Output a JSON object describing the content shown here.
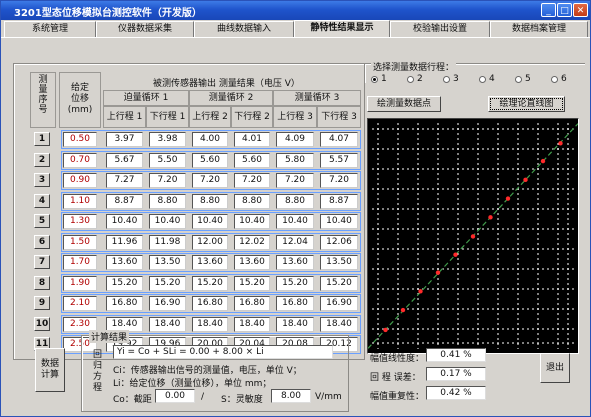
{
  "window": {
    "title": "3201型态位移模拟台测控软件（开发版）"
  },
  "tabs": [
    "系统管理",
    "仪器数据采集",
    "曲线数据输入",
    "静特性结果显示",
    "校验输出设置",
    "数据档案管理"
  ],
  "active_tab": 3,
  "table": {
    "group_title": "被测传感器输出 测量结果（电压 V）",
    "col_num": "测量序号",
    "col_disp": "给定位移",
    "col_unit": "(mm)",
    "cycles": [
      "迫量循环 1",
      "测量循环 2",
      "测量循环 3"
    ],
    "subcols": [
      "上行程 1",
      "下行程 1",
      "上行程 2",
      "下行程 2",
      "上行程 3",
      "下行程 3"
    ],
    "rows": [
      {
        "n": "1",
        "disp": "0.50",
        "v": [
          "3.97",
          "3.98",
          "4.00",
          "4.01",
          "4.09",
          "4.07"
        ]
      },
      {
        "n": "2",
        "disp": "0.70",
        "v": [
          "5.67",
          "5.50",
          "5.60",
          "5.60",
          "5.80",
          "5.57"
        ]
      },
      {
        "n": "3",
        "disp": "0.90",
        "v": [
          "7.27",
          "7.20",
          "7.20",
          "7.20",
          "7.20",
          "7.20"
        ]
      },
      {
        "n": "4",
        "disp": "1.10",
        "v": [
          "8.87",
          "8.80",
          "8.80",
          "8.80",
          "8.80",
          "8.87"
        ]
      },
      {
        "n": "5",
        "disp": "1.30",
        "v": [
          "10.40",
          "10.40",
          "10.40",
          "10.40",
          "10.40",
          "10.40"
        ]
      },
      {
        "n": "6",
        "disp": "1.50",
        "v": [
          "11.96",
          "11.98",
          "12.00",
          "12.02",
          "12.04",
          "12.06"
        ]
      },
      {
        "n": "7",
        "disp": "1.70",
        "v": [
          "13.60",
          "13.50",
          "13.60",
          "13.60",
          "13.60",
          "13.50"
        ]
      },
      {
        "n": "8",
        "disp": "1.90",
        "v": [
          "15.20",
          "15.20",
          "15.20",
          "15.20",
          "15.20",
          "15.20"
        ]
      },
      {
        "n": "9",
        "disp": "2.10",
        "v": [
          "16.80",
          "16.90",
          "16.80",
          "16.80",
          "16.80",
          "16.90"
        ]
      },
      {
        "n": "10",
        "disp": "2.30",
        "v": [
          "18.40",
          "18.40",
          "18.40",
          "18.40",
          "18.40",
          "18.40"
        ]
      },
      {
        "n": "11",
        "disp": "2.50",
        "v": [
          "19.92",
          "19.96",
          "20.00",
          "20.04",
          "20.08",
          "20.12"
        ]
      }
    ]
  },
  "selector": {
    "title": "选择测量数据行程：",
    "options": [
      "1",
      "2",
      "3",
      "4",
      "5",
      "6"
    ],
    "selected": 0
  },
  "buttons": {
    "plot_points": "绘测量数据点",
    "plot_line": "绘理论直线图",
    "compute": "数据计算",
    "exit": "退出"
  },
  "results": {
    "group_title": "计算结果",
    "vertical_label": "回归方程",
    "equation": "Yi = Co + SLi = 0.00 + 8.00 × Li",
    "note_y": "Ci：传感器输出信号的测量值，电压，单位 V；",
    "note_l": "Li：给定位移（测量位移），单位 mm；",
    "intercept_label": "Co：截距",
    "intercept": "0.00",
    "slope_label": "S：灵敏度",
    "slope": "8.00",
    "slope_unit": "V/mm",
    "linearity_label": "幅值线性度：",
    "linearity": "0.41 %",
    "hysteresis_label": "回 程 误差：",
    "hysteresis": "0.17 %",
    "repeatability_label": "幅值重复性：",
    "repeatability": "0.42 %"
  },
  "chart_data": {
    "type": "line",
    "x": [
      0.5,
      0.7,
      0.9,
      1.1,
      1.3,
      1.5,
      1.7,
      1.9,
      2.1,
      2.3,
      2.5
    ],
    "series": [
      {
        "values": [
          4.0,
          5.6,
          7.2,
          8.8,
          10.4,
          12.0,
          13.6,
          15.2,
          16.8,
          18.4,
          20.0
        ]
      }
    ],
    "points_y": [
      3.97,
      5.67,
      7.27,
      8.87,
      10.4,
      11.96,
      13.6,
      15.2,
      16.8,
      18.4,
      19.92
    ],
    "grid": true,
    "colors": {
      "background": "#000000",
      "grid": "#ffffff",
      "line": "#3f9a4a",
      "points": "#ff2a2a"
    }
  }
}
